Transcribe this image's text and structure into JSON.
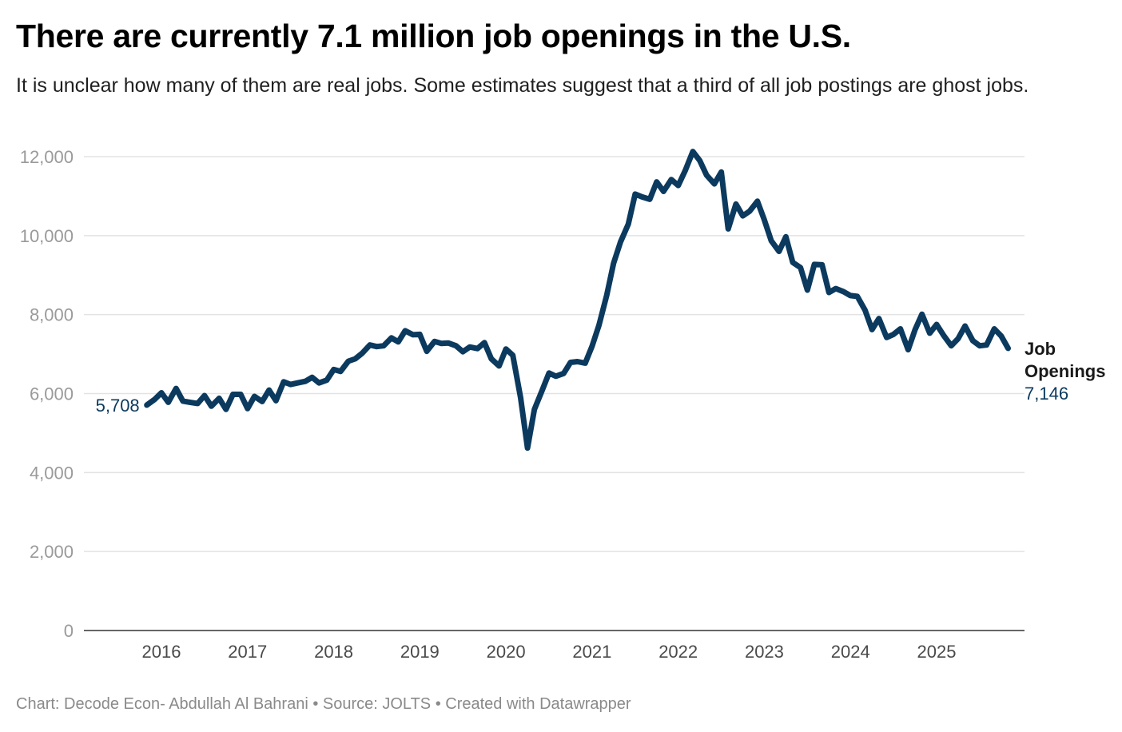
{
  "title": "There are currently 7.1 million job openings in the U.S.",
  "subtitle": "It is unclear how many of them are real jobs. Some estimates suggest that a third of all job postings are ghost jobs.",
  "footer": "Chart: Decode Econ- Abdullah Al Bahrani • Source: JOLTS • Created with Datawrapper",
  "colors": {
    "line": "#0b3a5e",
    "grid": "#e3e3e3",
    "axis": "#333333"
  },
  "chart_data": {
    "type": "line",
    "title": "There are currently 7.1 million job openings in the U.S.",
    "xlabel": "",
    "ylabel": "",
    "grid": true,
    "ylim": [
      0,
      12000
    ],
    "xlim": [
      2015.25,
      2025.92
    ],
    "yticks": [
      0,
      2000,
      4000,
      6000,
      8000,
      10000,
      12000
    ],
    "ytick_labels": [
      "0",
      "2,000",
      "4,000",
      "6,000",
      "8,000",
      "10,000",
      "12,000"
    ],
    "xticks": [
      2016,
      2017,
      2018,
      2019,
      2020,
      2021,
      2022,
      2023,
      2024,
      2025
    ],
    "xtick_labels": [
      "2016",
      "2017",
      "2018",
      "2019",
      "2020",
      "2021",
      "2022",
      "2023",
      "2024",
      "2025"
    ],
    "series": [
      {
        "name": "Job Openings",
        "label_lines": [
          "Job",
          "Openings"
        ],
        "start_label": "5,708",
        "end_label": "7,146",
        "points": [
          [
            2015.83,
            5708
          ],
          [
            2015.92,
            5850
          ],
          [
            2016.0,
            6020
          ],
          [
            2016.08,
            5780
          ],
          [
            2016.17,
            6130
          ],
          [
            2016.25,
            5810
          ],
          [
            2016.33,
            5780
          ],
          [
            2016.42,
            5750
          ],
          [
            2016.5,
            5950
          ],
          [
            2016.58,
            5680
          ],
          [
            2016.67,
            5880
          ],
          [
            2016.75,
            5600
          ],
          [
            2016.83,
            5980
          ],
          [
            2016.92,
            5980
          ],
          [
            2017.0,
            5620
          ],
          [
            2017.08,
            5930
          ],
          [
            2017.17,
            5800
          ],
          [
            2017.25,
            6090
          ],
          [
            2017.33,
            5820
          ],
          [
            2017.42,
            6300
          ],
          [
            2017.5,
            6230
          ],
          [
            2017.58,
            6270
          ],
          [
            2017.67,
            6310
          ],
          [
            2017.75,
            6410
          ],
          [
            2017.83,
            6270
          ],
          [
            2017.92,
            6340
          ],
          [
            2018.0,
            6610
          ],
          [
            2018.08,
            6560
          ],
          [
            2018.17,
            6820
          ],
          [
            2018.25,
            6880
          ],
          [
            2018.33,
            7020
          ],
          [
            2018.42,
            7230
          ],
          [
            2018.5,
            7190
          ],
          [
            2018.58,
            7210
          ],
          [
            2018.67,
            7410
          ],
          [
            2018.75,
            7310
          ],
          [
            2018.83,
            7590
          ],
          [
            2018.92,
            7490
          ],
          [
            2019.0,
            7500
          ],
          [
            2019.08,
            7070
          ],
          [
            2019.17,
            7320
          ],
          [
            2019.25,
            7270
          ],
          [
            2019.33,
            7280
          ],
          [
            2019.42,
            7210
          ],
          [
            2019.5,
            7060
          ],
          [
            2019.58,
            7180
          ],
          [
            2019.67,
            7140
          ],
          [
            2019.75,
            7290
          ],
          [
            2019.83,
            6880
          ],
          [
            2019.92,
            6700
          ],
          [
            2020.0,
            7130
          ],
          [
            2020.08,
            6970
          ],
          [
            2020.17,
            5900
          ],
          [
            2020.25,
            4620
          ],
          [
            2020.33,
            5600
          ],
          [
            2020.42,
            6080
          ],
          [
            2020.5,
            6520
          ],
          [
            2020.58,
            6440
          ],
          [
            2020.67,
            6510
          ],
          [
            2020.75,
            6790
          ],
          [
            2020.83,
            6810
          ],
          [
            2020.92,
            6770
          ],
          [
            2021.0,
            7200
          ],
          [
            2021.08,
            7730
          ],
          [
            2021.17,
            8490
          ],
          [
            2021.25,
            9300
          ],
          [
            2021.33,
            9840
          ],
          [
            2021.42,
            10290
          ],
          [
            2021.5,
            11050
          ],
          [
            2021.58,
            10980
          ],
          [
            2021.67,
            10920
          ],
          [
            2021.75,
            11360
          ],
          [
            2021.83,
            11120
          ],
          [
            2021.92,
            11420
          ],
          [
            2022.0,
            11270
          ],
          [
            2022.08,
            11640
          ],
          [
            2022.17,
            12130
          ],
          [
            2022.25,
            11900
          ],
          [
            2022.33,
            11530
          ],
          [
            2022.42,
            11310
          ],
          [
            2022.5,
            11610
          ],
          [
            2022.58,
            10170
          ],
          [
            2022.67,
            10800
          ],
          [
            2022.75,
            10500
          ],
          [
            2022.83,
            10620
          ],
          [
            2022.92,
            10870
          ],
          [
            2023.0,
            10400
          ],
          [
            2023.08,
            9870
          ],
          [
            2023.17,
            9600
          ],
          [
            2023.25,
            9970
          ],
          [
            2023.33,
            9320
          ],
          [
            2023.42,
            9190
          ],
          [
            2023.5,
            8620
          ],
          [
            2023.58,
            9270
          ],
          [
            2023.67,
            9260
          ],
          [
            2023.75,
            8560
          ],
          [
            2023.83,
            8660
          ],
          [
            2023.92,
            8580
          ],
          [
            2024.0,
            8480
          ],
          [
            2024.08,
            8460
          ],
          [
            2024.17,
            8110
          ],
          [
            2024.25,
            7620
          ],
          [
            2024.33,
            7900
          ],
          [
            2024.42,
            7420
          ],
          [
            2024.5,
            7500
          ],
          [
            2024.58,
            7640
          ],
          [
            2024.67,
            7110
          ],
          [
            2024.75,
            7620
          ],
          [
            2024.83,
            8010
          ],
          [
            2024.92,
            7530
          ],
          [
            2025.0,
            7750
          ],
          [
            2025.08,
            7480
          ],
          [
            2025.17,
            7210
          ],
          [
            2025.25,
            7390
          ],
          [
            2025.33,
            7710
          ],
          [
            2025.42,
            7340
          ],
          [
            2025.5,
            7210
          ],
          [
            2025.58,
            7230
          ],
          [
            2025.67,
            7640
          ],
          [
            2025.75,
            7460
          ],
          [
            2025.83,
            7146
          ]
        ]
      }
    ]
  }
}
